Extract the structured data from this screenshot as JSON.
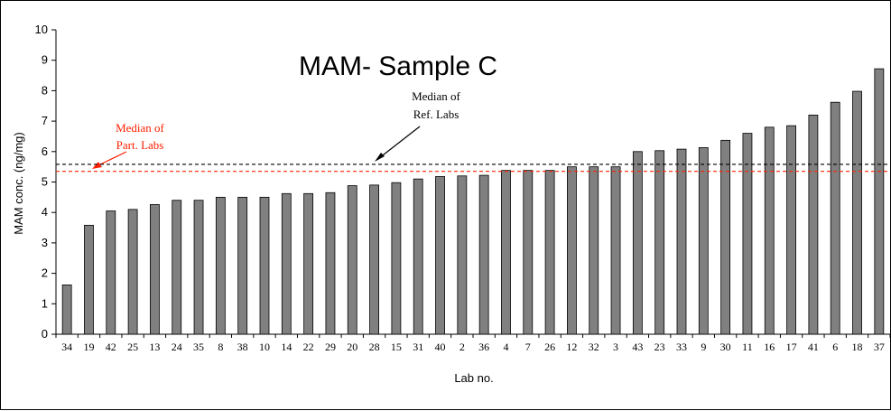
{
  "chart_data": {
    "type": "bar",
    "title": "MAM- Sample C",
    "xlabel": "Lab no.",
    "ylabel": "MAM conc. (ng/mg)",
    "ylim": [
      0,
      10
    ],
    "yticks": [
      0,
      1,
      2,
      3,
      4,
      5,
      6,
      7,
      8,
      9,
      10
    ],
    "grid": false,
    "categories": [
      "34",
      "19",
      "42",
      "25",
      "13",
      "24",
      "35",
      "8",
      "38",
      "10",
      "14",
      "22",
      "29",
      "20",
      "28",
      "15",
      "31",
      "40",
      "2",
      "36",
      "4",
      "7",
      "26",
      "12",
      "32",
      "3",
      "43",
      "23",
      "33",
      "9",
      "30",
      "11",
      "16",
      "17",
      "41",
      "6",
      "18",
      "37"
    ],
    "values": [
      1.62,
      3.58,
      4.05,
      4.1,
      4.26,
      4.4,
      4.4,
      4.5,
      4.5,
      4.5,
      4.62,
      4.62,
      4.65,
      4.88,
      4.9,
      4.98,
      5.1,
      5.18,
      5.2,
      5.22,
      5.38,
      5.38,
      5.38,
      5.5,
      5.5,
      5.5,
      6.0,
      6.03,
      6.08,
      6.13,
      6.37,
      6.6,
      6.8,
      6.85,
      7.2,
      7.62,
      7.98,
      8.72
    ],
    "bar_color": "#808080",
    "reference_lines": [
      {
        "label": "Median of Ref. Labs",
        "label_lines": [
          "Median of",
          "Ref. Labs"
        ],
        "value": 5.58,
        "color": "#000000",
        "style": "dashed"
      },
      {
        "label": "Median of Part. Labs",
        "label_lines": [
          "Median of",
          "Part. Labs"
        ],
        "value": 5.35,
        "color": "#ff2000",
        "style": "dashed"
      }
    ]
  }
}
